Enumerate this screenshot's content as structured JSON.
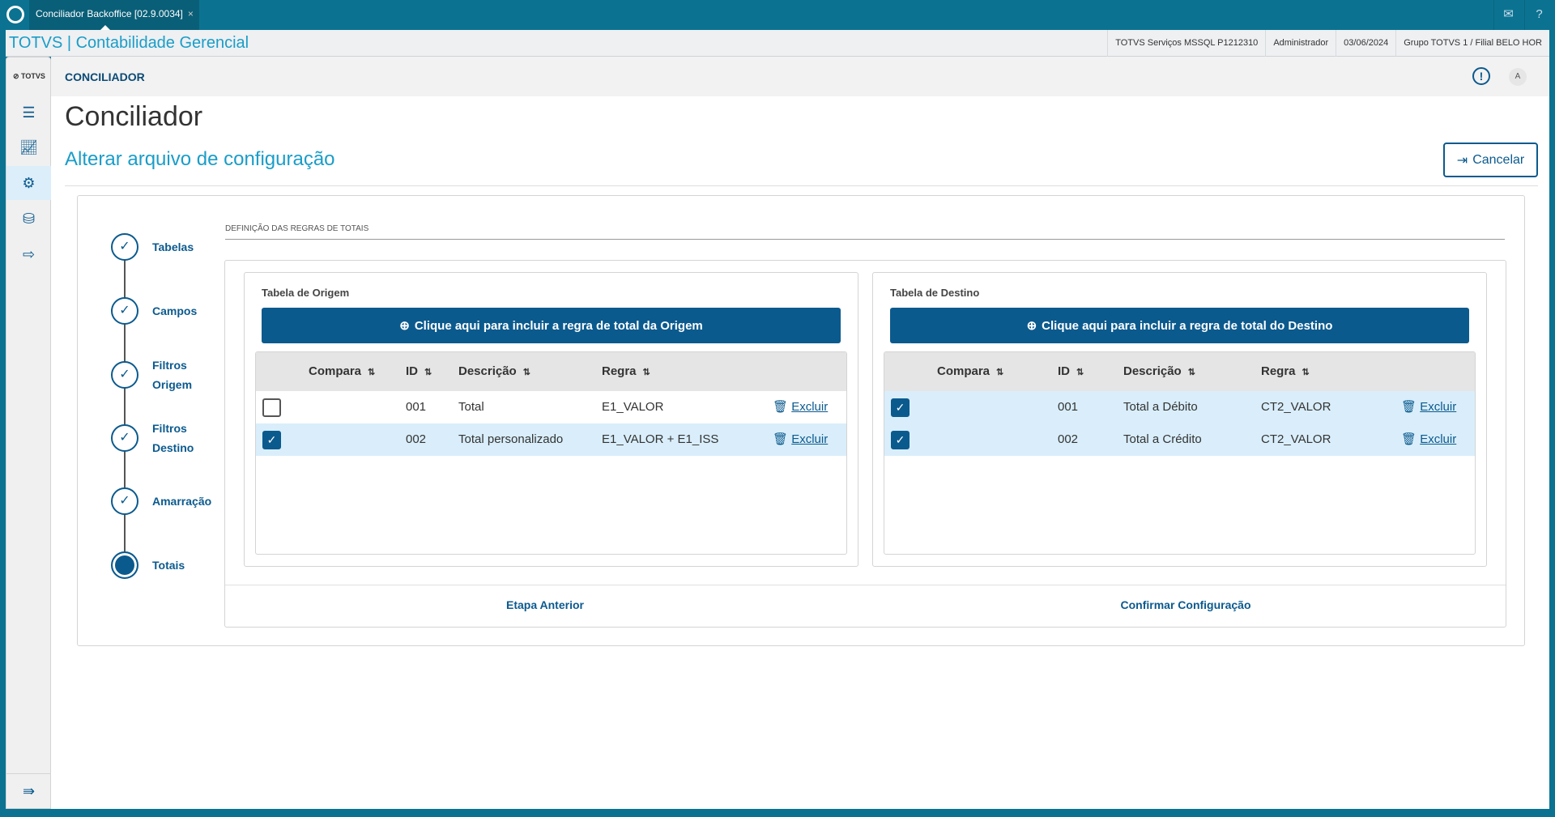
{
  "window": {
    "tab_title": "Conciliador Backoffice [02.9.0034]",
    "close": "×"
  },
  "app": {
    "title": "TOTVS | Contabilidade Gerencial",
    "info": [
      "TOTVS Serviços MSSQL P1212310",
      "Administrador",
      "03/06/2024",
      "Grupo TOTVS 1 / Filial BELO HOR"
    ]
  },
  "sidebar": {
    "logo": "TOTVS",
    "items": [
      {
        "icon": "list-icon"
      },
      {
        "icon": "chart-icon"
      },
      {
        "icon": "gear-icon",
        "active": true
      },
      {
        "icon": "database-icon"
      },
      {
        "icon": "logout-icon"
      }
    ],
    "collapse_icon": "menu-collapse-icon"
  },
  "header": {
    "module": "CONCILIADOR",
    "title": "Conciliador",
    "subtitle": "Alterar arquivo de configuração",
    "cancel_label": "Cancelar"
  },
  "stepper": {
    "steps": [
      {
        "label": "Tabelas",
        "done": true
      },
      {
        "label": "Campos",
        "done": true
      },
      {
        "label": "Filtros Origem",
        "done": true
      },
      {
        "label": "Filtros Destino",
        "done": true
      },
      {
        "label": "Amarração",
        "done": true
      },
      {
        "label": "Totais",
        "current": true
      }
    ]
  },
  "section_label": "DEFINIÇÃO DAS REGRAS DE TOTAIS",
  "origem": {
    "title": "Tabela de Origem",
    "add_label": "Clique aqui para incluir a regra de total da Origem",
    "columns": [
      "Compara",
      "ID",
      "Descrição",
      "Regra"
    ],
    "rows": [
      {
        "checked": false,
        "id": "001",
        "descricao": "Total",
        "regra": "E1_VALOR",
        "action": "Excluir"
      },
      {
        "checked": true,
        "id": "002",
        "descricao": "Total personalizado",
        "regra": "E1_VALOR + E1_ISS",
        "action": "Excluir"
      }
    ]
  },
  "destino": {
    "title": "Tabela de Destino",
    "add_label": "Clique aqui para incluir a regra de total do Destino",
    "columns": [
      "Compara",
      "ID",
      "Descrição",
      "Regra"
    ],
    "rows": [
      {
        "checked": true,
        "id": "001",
        "descricao": "Total a Débito",
        "regra": "CT2_VALOR",
        "action": "Excluir"
      },
      {
        "checked": true,
        "id": "002",
        "descricao": "Total a Crédito",
        "regra": "CT2_VALOR",
        "action": "Excluir"
      }
    ]
  },
  "footer": {
    "prev": "Etapa Anterior",
    "confirm": "Confirmar Configuração"
  },
  "colors": {
    "brand": "#0b7391",
    "primary": "#0b5a8e",
    "accent": "#1a9dc8",
    "selected_row": "#d9eefa"
  }
}
